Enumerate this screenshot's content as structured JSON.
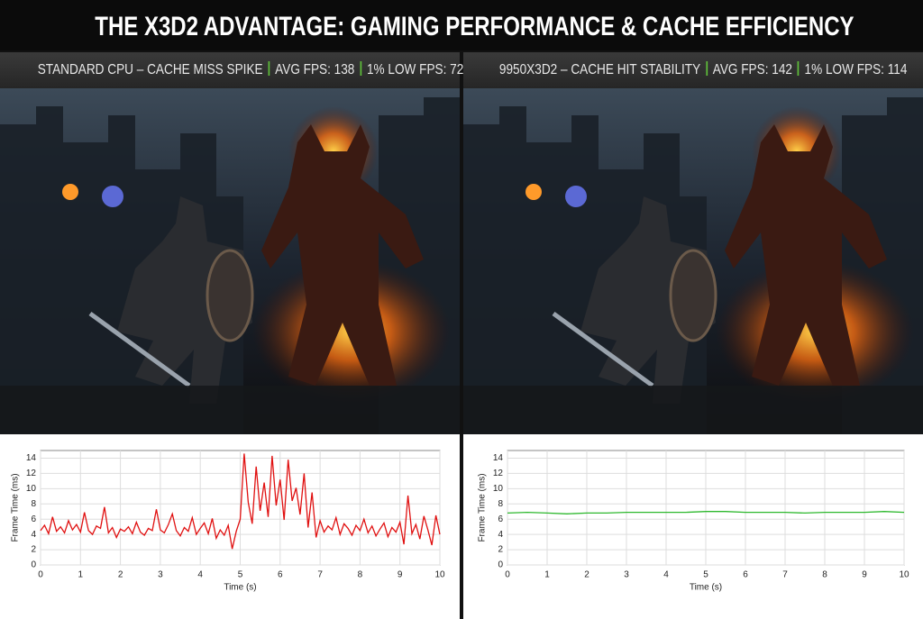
{
  "title": "THE X3D2 ADVANTAGE: GAMING PERFORMANCE & CACHE EFFICIENCY",
  "panels": [
    {
      "label": "STANDARD CPU – CACHE MISS SPIKE",
      "avg": "AVG FPS: 138",
      "low": "1% LOW FPS: 72"
    },
    {
      "label": "9950X3D2 – CACHE HIT STABILITY",
      "avg": "AVG FPS: 142",
      "low": "1% LOW FPS: 114"
    }
  ],
  "chart_data": [
    {
      "type": "line",
      "xlabel": "Time (s)",
      "ylabel": "Frame Time (ms)",
      "xlim": [
        0,
        10
      ],
      "xticks": [
        0,
        1,
        2,
        3,
        4,
        5,
        6,
        7,
        8,
        9,
        10
      ],
      "ylim": [
        0,
        15
      ],
      "yticks": [
        0,
        2,
        4,
        6,
        8,
        10,
        12,
        14
      ],
      "grid": true,
      "x": [
        0,
        0.1,
        0.2,
        0.3,
        0.4,
        0.5,
        0.6,
        0.7,
        0.8,
        0.9,
        1,
        1.1,
        1.2,
        1.3,
        1.4,
        1.5,
        1.6,
        1.7,
        1.8,
        1.9,
        2,
        2.1,
        2.2,
        2.3,
        2.4,
        2.5,
        2.6,
        2.7,
        2.8,
        2.9,
        3,
        3.1,
        3.2,
        3.3,
        3.4,
        3.5,
        3.6,
        3.7,
        3.8,
        3.9,
        4,
        4.1,
        4.2,
        4.3,
        4.4,
        4.5,
        4.6,
        4.7,
        4.8,
        4.9,
        5,
        5.1,
        5.2,
        5.3,
        5.4,
        5.5,
        5.6,
        5.7,
        5.8,
        5.9,
        6,
        6.1,
        6.2,
        6.3,
        6.4,
        6.5,
        6.6,
        6.7,
        6.8,
        6.9,
        7,
        7.1,
        7.2,
        7.3,
        7.4,
        7.5,
        7.6,
        7.7,
        7.8,
        7.9,
        8,
        8.1,
        8.2,
        8.3,
        8.4,
        8.5,
        8.6,
        8.7,
        8.8,
        8.9,
        9,
        9.1,
        9.2,
        9.3,
        9.4,
        9.5,
        9.6,
        9.7,
        9.8,
        9.9,
        10
      ],
      "series": [
        {
          "color": "#e01010",
          "values": [
            4.5,
            5.2,
            4.1,
            6.3,
            4.4,
            5.0,
            4.2,
            5.8,
            4.6,
            5.3,
            4.3,
            6.9,
            4.5,
            4.0,
            5.1,
            4.8,
            7.6,
            4.2,
            4.9,
            3.6,
            4.7,
            4.4,
            5.0,
            4.1,
            5.6,
            4.3,
            3.9,
            4.8,
            4.5,
            7.3,
            4.6,
            4.2,
            5.3,
            6.7,
            4.5,
            3.8,
            4.9,
            4.4,
            6.2,
            4.0,
            4.8,
            5.5,
            4.1,
            6.1,
            3.5,
            4.6,
            3.9,
            5.2,
            2.1,
            4.4,
            6.0,
            14.6,
            8.2,
            5.4,
            12.9,
            7.1,
            10.8,
            6.3,
            14.3,
            7.8,
            11.2,
            5.9,
            13.8,
            8.4,
            10.1,
            6.6,
            12.0,
            4.9,
            9.5,
            3.6,
            5.8,
            4.3,
            5.1,
            4.6,
            6.2,
            4.0,
            5.4,
            4.8,
            3.9,
            5.2,
            4.5,
            6.0,
            4.2,
            5.1,
            3.8,
            4.7,
            5.5,
            3.7,
            4.9,
            4.3,
            5.6,
            2.7,
            9.1,
            4.1,
            5.3,
            3.4,
            6.4,
            4.6,
            2.6,
            6.5,
            4.0
          ]
        }
      ]
    },
    {
      "type": "line",
      "xlabel": "Time (s)",
      "ylabel": "Frame Time (ms)",
      "xlim": [
        0,
        10
      ],
      "xticks": [
        0,
        1,
        2,
        3,
        4,
        5,
        6,
        7,
        8,
        9,
        10
      ],
      "ylim": [
        0,
        15
      ],
      "yticks": [
        0,
        2,
        4,
        6,
        8,
        10,
        12,
        14
      ],
      "grid": true,
      "x": [
        0,
        0.5,
        1,
        1.5,
        2,
        2.5,
        3,
        3.5,
        4,
        4.5,
        5,
        5.5,
        6,
        6.5,
        7,
        7.5,
        8,
        8.5,
        9,
        9.5,
        10
      ],
      "series": [
        {
          "color": "#2db82d",
          "values": [
            6.8,
            6.9,
            6.8,
            6.7,
            6.8,
            6.8,
            6.9,
            6.9,
            6.9,
            6.9,
            7.0,
            7.0,
            6.9,
            6.9,
            6.9,
            6.8,
            6.9,
            6.9,
            6.9,
            7.0,
            6.9
          ]
        }
      ]
    }
  ]
}
